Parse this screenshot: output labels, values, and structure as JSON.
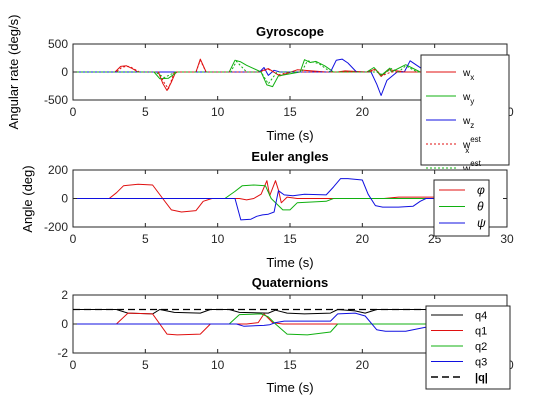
{
  "chart_data": [
    {
      "type": "line",
      "title": "Gyroscope",
      "xlabel": "Time (s)",
      "ylabel": "Angular rate (deg/s)",
      "xlim": [
        0,
        30
      ],
      "ylim": [
        -500,
        500
      ],
      "xticks": [
        0,
        5,
        10,
        15,
        20,
        25,
        30
      ],
      "yticks": [
        -500,
        0,
        500
      ],
      "grid": false,
      "legend_position": "right",
      "series": [
        {
          "name": "w_x",
          "base": "w",
          "sub": "x",
          "sup": "",
          "color": "#e01010",
          "dash": "",
          "x": [
            0,
            2.9,
            3.3,
            3.7,
            4.1,
            4.5,
            5.9,
            6.2,
            6.5,
            6.8,
            7.1,
            8.5,
            8.8,
            9.2,
            10.5,
            12.8,
            13.5,
            14.3,
            15.5,
            17.5,
            18.3,
            18.8,
            20.3,
            20.9,
            21.3,
            21.8,
            23.0,
            24.0,
            26.0
          ],
          "y": [
            0,
            0,
            100,
            110,
            60,
            0,
            0,
            -200,
            -330,
            -180,
            0,
            0,
            230,
            0,
            0,
            0,
            60,
            -70,
            40,
            0,
            0,
            20,
            0,
            50,
            -80,
            40,
            0,
            0,
            0
          ]
        },
        {
          "name": "w_y",
          "base": "w",
          "sub": "y",
          "sup": "",
          "color": "#10b010",
          "dash": "",
          "x": [
            0,
            5.6,
            6.0,
            6.6,
            7.2,
            10.8,
            11.2,
            11.6,
            12.0,
            13.0,
            13.4,
            13.8,
            14.2,
            15.7,
            16.0,
            16.4,
            16.8,
            17.4,
            17.8,
            18.0,
            19.0,
            20.3,
            20.8,
            21.3,
            21.9,
            22.0,
            23.0,
            24.0,
            26.0
          ],
          "y": [
            0,
            0,
            -120,
            -110,
            0,
            0,
            210,
            180,
            120,
            0,
            -230,
            -260,
            -70,
            0,
            220,
            170,
            190,
            110,
            40,
            0,
            0,
            0,
            80,
            -60,
            70,
            0,
            130,
            0,
            0
          ]
        },
        {
          "name": "w_z",
          "base": "w",
          "sub": "z",
          "sup": "",
          "color": "#1010e0",
          "dash": "",
          "x": [
            0,
            12.9,
            13.2,
            13.5,
            13.9,
            14.3,
            15.0,
            17.8,
            18.2,
            18.6,
            19.0,
            19.6,
            20.6,
            21.0,
            21.3,
            21.7,
            22.4,
            22.9,
            23.3,
            24.1,
            24.6,
            26.0
          ],
          "y": [
            0,
            0,
            80,
            -60,
            30,
            0,
            0,
            0,
            210,
            230,
            160,
            0,
            0,
            -220,
            -420,
            -150,
            0,
            0,
            200,
            60,
            0,
            0
          ]
        },
        {
          "name": "w_x^est",
          "base": "w",
          "sub": "x",
          "sup": "est",
          "color": "#e01010",
          "dash": "2,2",
          "x": [
            0,
            3.0,
            3.4,
            3.9,
            4.6,
            5.9,
            6.3,
            6.6,
            7.0,
            8.5,
            8.8,
            9.2,
            12.9,
            13.5,
            14.2,
            15.0,
            20.5,
            20.9,
            21.4,
            22.0,
            30.0
          ],
          "y": [
            0,
            0,
            90,
            100,
            0,
            0,
            -190,
            -300,
            0,
            0,
            210,
            0,
            0,
            50,
            -50,
            0,
            0,
            40,
            -60,
            0,
            0
          ]
        },
        {
          "name": "w_y^est",
          "base": "w",
          "sub": "y",
          "sup": "est",
          "color": "#10b010",
          "dash": "2,2",
          "x": [
            0,
            5.7,
            6.3,
            7.1,
            10.9,
            11.3,
            12.0,
            13.0,
            13.5,
            14.1,
            15.8,
            16.2,
            17.0,
            17.8,
            21.0,
            21.4,
            22.0,
            22.5,
            23.0,
            23.8,
            30.0
          ],
          "y": [
            0,
            0,
            -100,
            0,
            0,
            190,
            0,
            0,
            -210,
            0,
            0,
            200,
            150,
            0,
            0,
            -50,
            60,
            0,
            110,
            0,
            0
          ]
        }
      ]
    },
    {
      "type": "line",
      "title": "Euler angles",
      "xlabel": "Time (s)",
      "ylabel": "Angle (deg)",
      "xlim": [
        0,
        30
      ],
      "ylim": [
        -200,
        200
      ],
      "xticks": [
        0,
        5,
        10,
        15,
        20,
        25,
        30
      ],
      "yticks": [
        -200,
        0,
        200
      ],
      "grid": false,
      "legend_position": "right",
      "series": [
        {
          "name": "φ",
          "color": "#e01010",
          "x": [
            0,
            2.5,
            3.0,
            3.5,
            4.5,
            5.5,
            6.2,
            6.8,
            7.5,
            8.5,
            9.0,
            9.6,
            11.5,
            12.0,
            12.5,
            13.0,
            13.4,
            13.6,
            14.0,
            14.2,
            14.4,
            14.8,
            15.5,
            21.5,
            22.5,
            26.0
          ],
          "y": [
            0,
            0,
            40,
            90,
            100,
            95,
            0,
            -80,
            -95,
            -85,
            -20,
            0,
            0,
            -10,
            0,
            30,
            125,
            20,
            125,
            60,
            -30,
            10,
            0,
            0,
            10,
            10
          ]
        },
        {
          "name": "θ",
          "color": "#10b010",
          "x": [
            0,
            10.5,
            11.2,
            11.7,
            12.5,
            13.3,
            13.7,
            14.5,
            15.0,
            15.5,
            17.5,
            18.0,
            20.5,
            26.0
          ],
          "y": [
            0,
            0,
            50,
            90,
            95,
            90,
            0,
            -80,
            -80,
            -30,
            -20,
            0,
            0,
            0
          ]
        },
        {
          "name": "ψ",
          "color": "#1010e0",
          "x": [
            0,
            11.2,
            11.6,
            12.3,
            12.7,
            13.1,
            13.5,
            13.9,
            14.2,
            14.6,
            15.2,
            16.0,
            17.5,
            18.0,
            18.5,
            19.0,
            20.0,
            20.4,
            20.9,
            21.4,
            22.5,
            23.5,
            24.0,
            24.4,
            24.8,
            26.0
          ],
          "y": [
            0,
            0,
            -150,
            -145,
            -125,
            -115,
            -110,
            -95,
            55,
            25,
            20,
            30,
            25,
            80,
            140,
            140,
            130,
            30,
            -50,
            -60,
            -60,
            -55,
            -20,
            0,
            0,
            0
          ]
        }
      ]
    },
    {
      "type": "line",
      "title": "Quaternions",
      "xlabel": "Time (s)",
      "ylabel": "",
      "xlim": [
        0,
        30
      ],
      "ylim": [
        -2,
        2
      ],
      "xticks": [
        0,
        5,
        10,
        15,
        20,
        25,
        30
      ],
      "yticks": [
        -2,
        0,
        2
      ],
      "grid": false,
      "legend_position": "right",
      "series": [
        {
          "name": "q4",
          "color": "#000000",
          "dash": "",
          "bold": false,
          "x": [
            0,
            3.0,
            3.8,
            5.5,
            6.0,
            7.0,
            8.8,
            9.5,
            10.8,
            11.5,
            13.5,
            14.0,
            14.8,
            16.0,
            17.8,
            18.3,
            19.5,
            20.2,
            21.0,
            26.0
          ],
          "y": [
            1,
            1,
            0.75,
            0.7,
            1,
            0.8,
            0.75,
            1,
            1,
            0.8,
            0.75,
            0.95,
            0.75,
            0.7,
            0.75,
            1,
            0.9,
            0.75,
            1,
            1
          ]
        },
        {
          "name": "q1",
          "color": "#e01010",
          "dash": "",
          "bold": false,
          "x": [
            0,
            3.0,
            3.8,
            5.5,
            6.0,
            6.5,
            7.2,
            8.8,
            9.5,
            11.5,
            12.0,
            12.8,
            13.2,
            13.8,
            14.5,
            15.5,
            26.0
          ],
          "y": [
            0,
            0,
            0.75,
            0.7,
            0,
            -0.7,
            -0.75,
            -0.7,
            0,
            0,
            0,
            0.1,
            0.7,
            0.1,
            0,
            0,
            0
          ]
        },
        {
          "name": "q2",
          "color": "#10b010",
          "dash": "",
          "bold": false,
          "x": [
            0,
            10.8,
            11.5,
            13.0,
            13.5,
            14.0,
            14.8,
            16.2,
            17.8,
            18.3,
            26.0
          ],
          "y": [
            0,
            0,
            0.65,
            0.7,
            0.5,
            0,
            -0.7,
            -0.75,
            -0.55,
            0,
            0
          ]
        },
        {
          "name": "q3",
          "color": "#1010e0",
          "dash": "",
          "bold": false,
          "x": [
            0,
            11.3,
            11.8,
            13.2,
            13.6,
            14.0,
            14.6,
            17.8,
            18.3,
            19.5,
            20.2,
            21.0,
            21.6,
            23.0,
            24.5,
            26.0
          ],
          "y": [
            0,
            0,
            -0.15,
            -0.1,
            -0.05,
            0.1,
            0.2,
            0.2,
            0.7,
            0.75,
            0.55,
            -0.4,
            -0.5,
            -0.5,
            -0.2,
            0
          ]
        },
        {
          "name": "|q|",
          "color": "#000000",
          "dash": "7,4",
          "bold": true,
          "x": [
            0,
            30
          ],
          "y": [
            1,
            1
          ]
        }
      ]
    }
  ]
}
